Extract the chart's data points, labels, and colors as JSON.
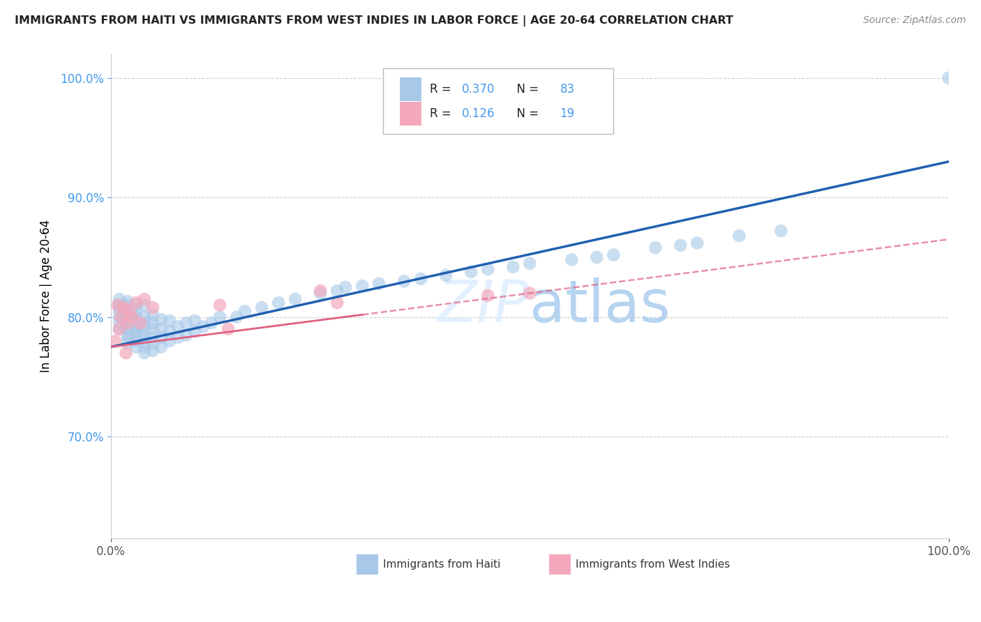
{
  "title": "IMMIGRANTS FROM HAITI VS IMMIGRANTS FROM WEST INDIES IN LABOR FORCE | AGE 20-64 CORRELATION CHART",
  "source": "Source: ZipAtlas.com",
  "ylabel": "In Labor Force | Age 20-64",
  "xlim": [
    0.0,
    1.0
  ],
  "ylim": [
    0.615,
    1.02
  ],
  "x_ticks": [
    0.0,
    1.0
  ],
  "x_tick_labels": [
    "0.0%",
    "100.0%"
  ],
  "y_ticks": [
    0.7,
    0.8,
    0.9,
    1.0
  ],
  "y_tick_labels": [
    "70.0%",
    "80.0%",
    "90.0%",
    "100.0%"
  ],
  "haiti_R": 0.37,
  "haiti_N": 83,
  "west_indies_R": 0.126,
  "west_indies_N": 19,
  "haiti_color": "#a8c8e8",
  "west_indies_color": "#f4a8bc",
  "haiti_line_color": "#2060b0",
  "west_indies_line_color": "#e06080",
  "background_color": "#ffffff",
  "grid_color": "#cccccc",
  "legend_text_color": "#4499ee",
  "legend_label_color": "#333333",
  "y_tick_color": "#4499ee",
  "haiti_x": [
    0.01,
    0.01,
    0.01,
    0.01,
    0.01,
    0.01,
    0.01,
    0.02,
    0.02,
    0.02,
    0.02,
    0.02,
    0.02,
    0.02,
    0.02,
    0.02,
    0.02,
    0.02,
    0.03,
    0.03,
    0.03,
    0.03,
    0.03,
    0.03,
    0.03,
    0.03,
    0.03,
    0.04,
    0.04,
    0.04,
    0.04,
    0.04,
    0.04,
    0.04,
    0.04,
    0.05,
    0.05,
    0.05,
    0.05,
    0.05,
    0.05,
    0.06,
    0.06,
    0.06,
    0.06,
    0.07,
    0.07,
    0.07,
    0.08,
    0.08,
    0.09,
    0.09,
    0.1,
    0.1,
    0.11,
    0.12,
    0.13,
    0.15,
    0.16,
    0.18,
    0.2,
    0.22,
    0.25,
    0.27,
    0.28,
    0.3,
    0.32,
    0.35,
    0.37,
    0.4,
    0.43,
    0.45,
    0.48,
    0.5,
    0.55,
    0.58,
    0.6,
    0.65,
    0.68,
    0.7,
    0.75,
    0.8,
    1.0
  ],
  "haiti_y": [
    0.79,
    0.795,
    0.8,
    0.805,
    0.808,
    0.81,
    0.815,
    0.778,
    0.782,
    0.785,
    0.79,
    0.792,
    0.795,
    0.8,
    0.803,
    0.807,
    0.81,
    0.813,
    0.775,
    0.78,
    0.785,
    0.788,
    0.792,
    0.795,
    0.8,
    0.805,
    0.81,
    0.77,
    0.775,
    0.78,
    0.785,
    0.79,
    0.795,
    0.8,
    0.81,
    0.772,
    0.778,
    0.783,
    0.79,
    0.795,
    0.802,
    0.775,
    0.783,
    0.79,
    0.798,
    0.78,
    0.788,
    0.797,
    0.783,
    0.792,
    0.785,
    0.795,
    0.788,
    0.797,
    0.792,
    0.795,
    0.8,
    0.8,
    0.805,
    0.808,
    0.812,
    0.815,
    0.82,
    0.822,
    0.825,
    0.826,
    0.828,
    0.83,
    0.832,
    0.835,
    0.838,
    0.84,
    0.842,
    0.845,
    0.848,
    0.85,
    0.852,
    0.858,
    0.86,
    0.862,
    0.868,
    0.872,
    1.0
  ],
  "west_indies_x": [
    0.005,
    0.008,
    0.01,
    0.012,
    0.015,
    0.018,
    0.02,
    0.022,
    0.025,
    0.03,
    0.035,
    0.04,
    0.05,
    0.13,
    0.14,
    0.25,
    0.27,
    0.45,
    0.5
  ],
  "west_indies_y": [
    0.78,
    0.81,
    0.79,
    0.8,
    0.808,
    0.77,
    0.795,
    0.805,
    0.8,
    0.812,
    0.795,
    0.815,
    0.808,
    0.81,
    0.79,
    0.822,
    0.812,
    0.818,
    0.82
  ]
}
